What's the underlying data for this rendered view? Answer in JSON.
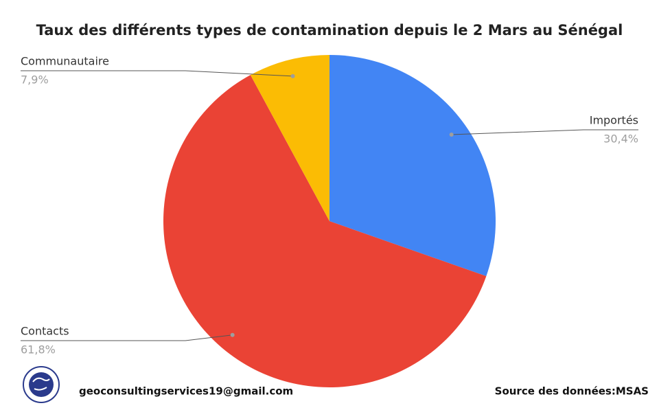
{
  "chart_data": {
    "type": "pie",
    "title": "Taux des différents types de contamination depuis le 2 Mars au Sénégal",
    "categories": [
      "Importés",
      "Contacts",
      "Communautaire"
    ],
    "values": [
      30.4,
      61.8,
      7.9
    ],
    "value_labels": [
      "30,4%",
      "61,8%",
      "7,9%"
    ],
    "colors": [
      "#4285f4",
      "#ea4335",
      "#fbbc04"
    ]
  },
  "footer": {
    "email": "geoconsultingservices19@gmail.com",
    "source": "Source des données:MSAS"
  }
}
